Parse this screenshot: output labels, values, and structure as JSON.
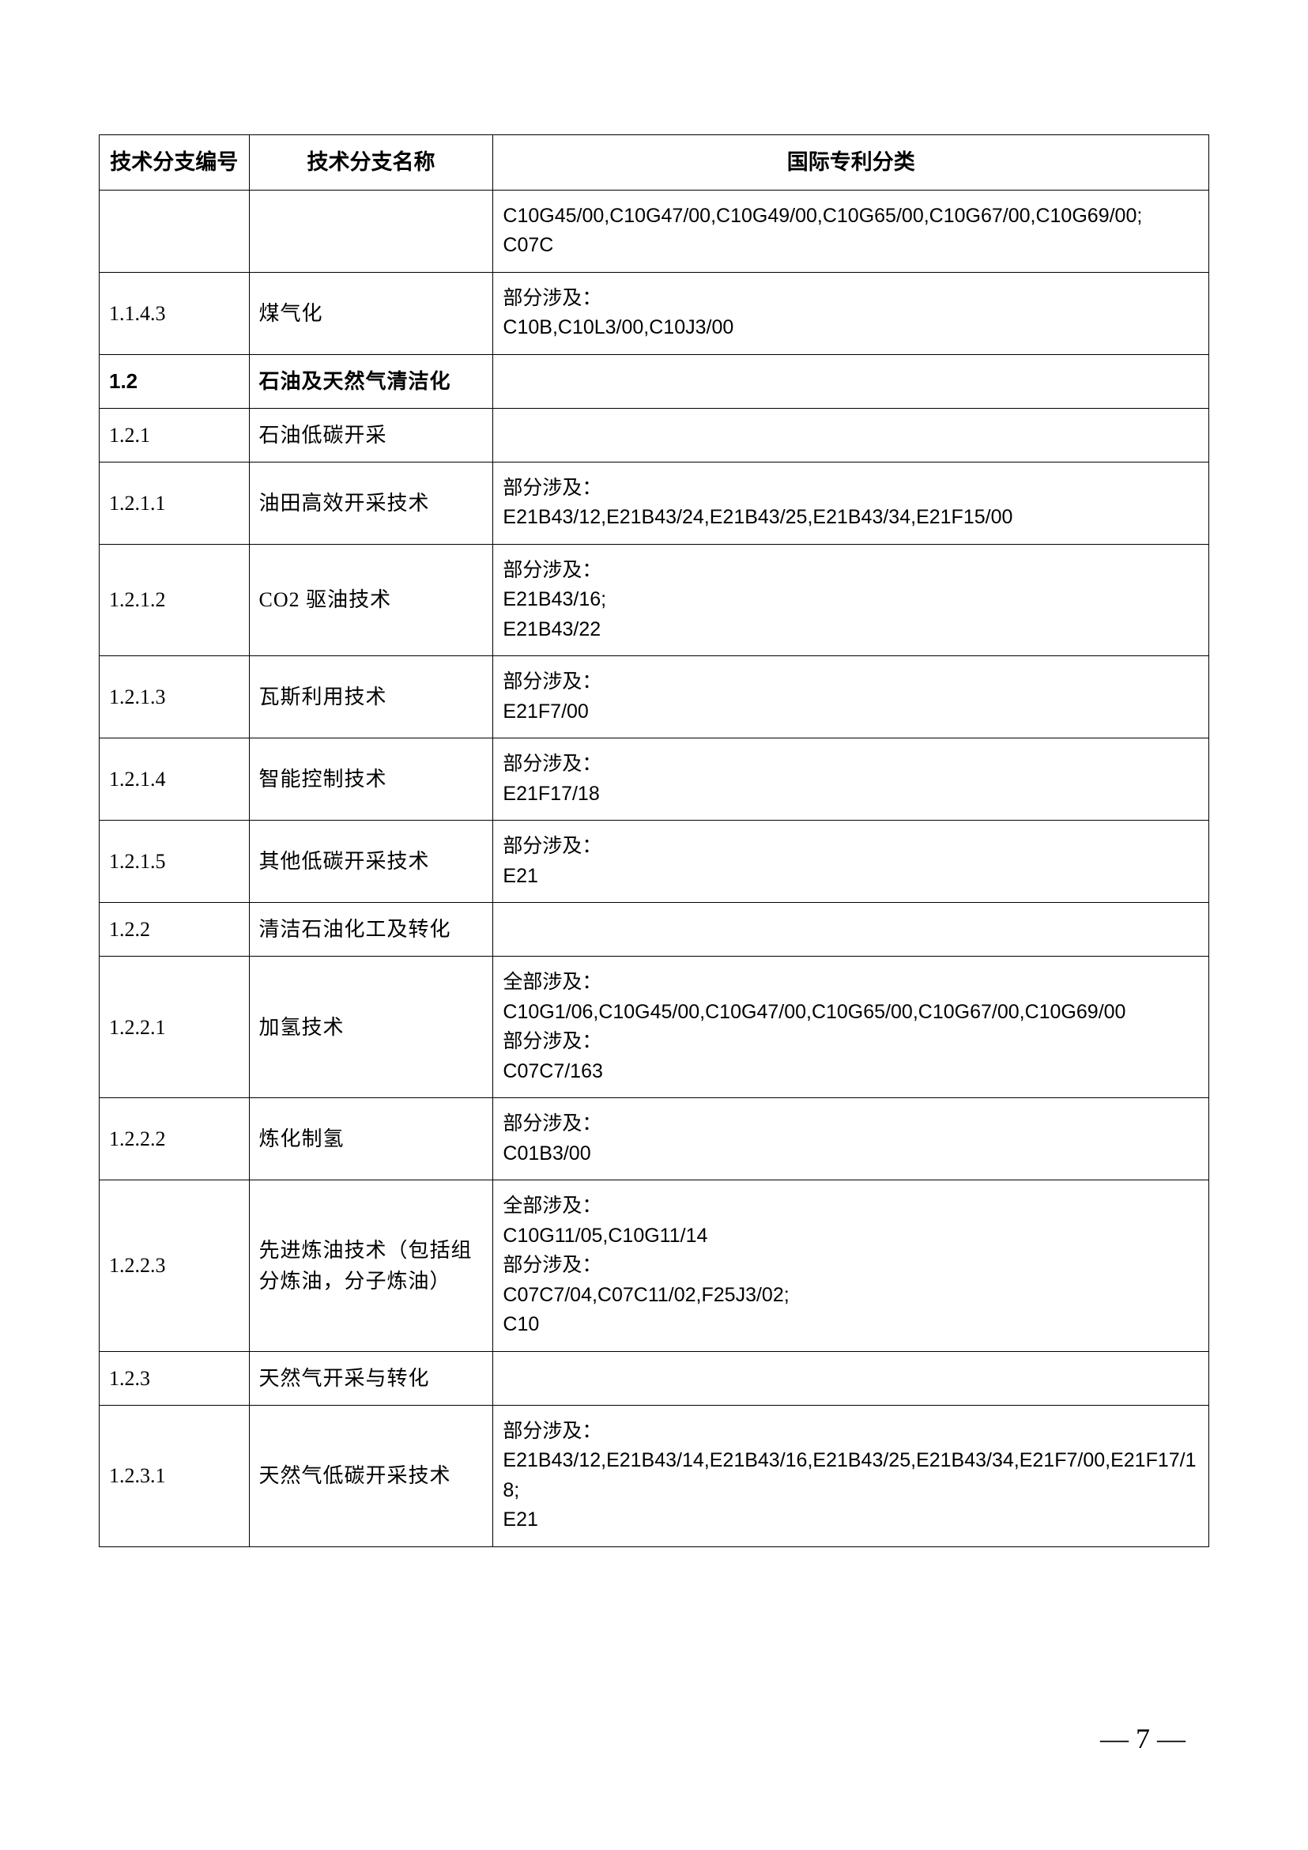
{
  "table": {
    "headers": {
      "col1": "技术分支编号",
      "col2": "技术分支名称",
      "col3": "国际专利分类"
    },
    "rows": [
      {
        "code": "",
        "name": "",
        "ipc_html": "C10G45/00,C10G47/00,C10G49/00,C10G65/00,C10G67/00,C10G69/00;<br>C07C",
        "bold": false
      },
      {
        "code": "1.1.4.3",
        "name": "煤气化",
        "ipc_label": "部分涉及：",
        "ipc_codes": "C10B,C10L3/00,C10J3/00",
        "bold": false
      },
      {
        "code": "1.2",
        "name": "石油及天然气清洁化",
        "ipc_html": "",
        "bold": true
      },
      {
        "code": "1.2.1",
        "name": "石油低碳开采",
        "ipc_html": "",
        "bold": false
      },
      {
        "code": "1.2.1.1",
        "name": "油田高效开采技术",
        "ipc_label": "部分涉及：",
        "ipc_codes": "E21B43/12,E21B43/24,E21B43/25,E21B43/34,E21F15/00",
        "bold": false
      },
      {
        "code": "1.2.1.2",
        "name": "CO2 驱油技术",
        "ipc_label": "部分涉及：",
        "ipc_codes": "E21B43/16;<br>E21B43/22",
        "bold": false
      },
      {
        "code": "1.2.1.3",
        "name": "瓦斯利用技术",
        "ipc_label": "部分涉及：",
        "ipc_codes": "E21F7/00",
        "bold": false
      },
      {
        "code": "1.2.1.4",
        "name": "智能控制技术",
        "ipc_label": "部分涉及：",
        "ipc_codes": "E21F17/18",
        "bold": false
      },
      {
        "code": "1.2.1.5",
        "name": "其他低碳开采技术",
        "ipc_label": "部分涉及：",
        "ipc_codes": "E21",
        "bold": false
      },
      {
        "code": "1.2.2",
        "name": "清洁石油化工及转化",
        "ipc_html": "",
        "bold": false
      },
      {
        "code": "1.2.2.1",
        "name": "加氢技术",
        "ipc_label1": "全部涉及：",
        "ipc_codes1": "C10G1/06,C10G45/00,C10G47/00,C10G65/00,C10G67/00,C10G69/00",
        "ipc_label2": "部分涉及：",
        "ipc_codes2": "C07C7/163",
        "bold": false,
        "multi": true
      },
      {
        "code": "1.2.2.2",
        "name": "炼化制氢",
        "ipc_label": "部分涉及：",
        "ipc_codes": "C01B3/00",
        "bold": false
      },
      {
        "code": "1.2.2.3",
        "name": "先进炼油技术（包括组分炼油，分子炼油）",
        "ipc_label1": "全部涉及：",
        "ipc_codes1": "C10G11/05,C10G11/14",
        "ipc_label2": "部分涉及：",
        "ipc_codes2": "C07C7/04,C07C11/02,F25J3/02;<br>C10",
        "bold": false,
        "multi": true
      },
      {
        "code": "1.2.3",
        "name": "天然气开采与转化",
        "ipc_html": "",
        "bold": false
      },
      {
        "code": "1.2.3.1",
        "name": "天然气低碳开采技术",
        "ipc_label": "部分涉及：",
        "ipc_codes": "E21B43/12,E21B43/14,E21B43/16,E21B43/25,E21B43/34,E21F7/00,E21F17/18;<br>E21",
        "bold": false
      }
    ]
  },
  "page_number": "— 7 —"
}
